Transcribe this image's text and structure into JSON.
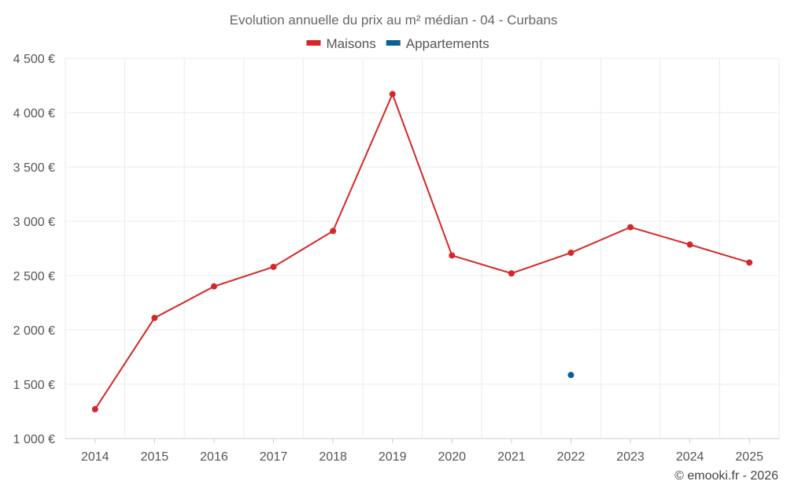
{
  "chart_data": {
    "type": "line",
    "title": "Evolution annuelle du prix au m² médian - 04 - Curbans",
    "x": [
      "2014",
      "2015",
      "2016",
      "2017",
      "2018",
      "2019",
      "2020",
      "2021",
      "2022",
      "2023",
      "2024",
      "2025"
    ],
    "y_ticks": [
      "1 000 €",
      "1 500 €",
      "2 000 €",
      "2 500 €",
      "3 000 €",
      "3 500 €",
      "4 000 €",
      "4 500 €"
    ],
    "ylim": [
      1000,
      4500
    ],
    "legend_position": "top-center",
    "series": [
      {
        "name": "Maisons",
        "color": "#d62728",
        "values": [
          1270,
          2110,
          2400,
          2580,
          2910,
          4170,
          2685,
          2520,
          2710,
          2945,
          2785,
          2620
        ]
      },
      {
        "name": "Appartements",
        "color": "#0a6199",
        "values": [
          null,
          null,
          null,
          null,
          null,
          null,
          null,
          null,
          1585,
          null,
          null,
          null
        ]
      }
    ]
  },
  "footer": {
    "credit": "© emooki.fr - 2026"
  }
}
